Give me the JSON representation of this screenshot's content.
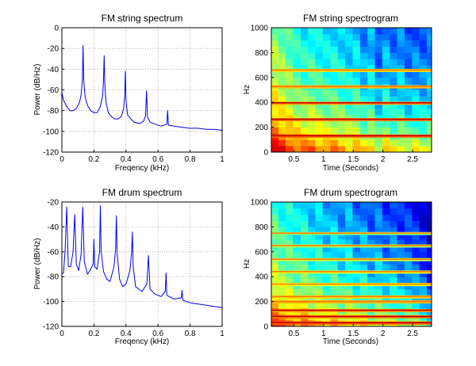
{
  "chart_data": [
    {
      "type": "line",
      "title": "FM string spectrum",
      "xlabel": "Freqency (kHz)",
      "ylabel": "Power (dB/Hz)",
      "xlim": [
        0,
        1
      ],
      "ylim": [
        -120,
        0
      ],
      "x_ticks": [
        "0",
        "0.2",
        "0.4",
        "0.6",
        "0.8",
        "1"
      ],
      "y_ticks": [
        "0",
        "-20",
        "-40",
        "-60",
        "-80",
        "-100",
        "-120"
      ],
      "grid": true,
      "line_color": "#0000ee",
      "peaks": [
        {
          "x": 0.132,
          "y": -17
        },
        {
          "x": 0.264,
          "y": -27
        },
        {
          "x": 0.396,
          "y": -42
        },
        {
          "x": 0.528,
          "y": -61
        },
        {
          "x": 0.66,
          "y": -80
        }
      ],
      "series": [
        {
          "x": [
            0,
            0.01,
            0.03,
            0.05,
            0.07,
            0.09,
            0.11,
            0.12,
            0.128,
            0.132,
            0.136,
            0.145,
            0.16,
            0.18,
            0.2,
            0.22,
            0.24,
            0.255,
            0.26,
            0.264,
            0.268,
            0.275,
            0.29,
            0.31,
            0.33,
            0.35,
            0.37,
            0.385,
            0.392,
            0.396,
            0.4,
            0.41,
            0.43,
            0.45,
            0.47,
            0.49,
            0.51,
            0.522,
            0.528,
            0.534,
            0.55,
            0.58,
            0.62,
            0.655,
            0.66,
            0.665,
            0.7,
            0.75,
            0.8,
            0.85,
            0.9,
            0.95,
            1.0
          ],
          "y": [
            -62,
            -70,
            -76,
            -80,
            -80,
            -78,
            -72,
            -65,
            -50,
            -17,
            -50,
            -67,
            -75,
            -80,
            -82,
            -82,
            -76,
            -65,
            -50,
            -27,
            -55,
            -72,
            -82,
            -86,
            -88,
            -88,
            -86,
            -78,
            -65,
            -42,
            -70,
            -84,
            -88,
            -91,
            -92,
            -92,
            -90,
            -85,
            -61,
            -86,
            -91,
            -93,
            -95,
            -93,
            -80,
            -94,
            -95,
            -96,
            -97,
            -97,
            -98,
            -98,
            -99
          ]
        }
      ]
    },
    {
      "type": "heatmap",
      "title": "FM string spectrogram",
      "xlabel": "Time (Seconds)",
      "ylabel": "Hz",
      "xlim": [
        0.12,
        2.82
      ],
      "ylim": [
        0,
        1000
      ],
      "x_ticks": [
        "0.5",
        "1",
        "1.5",
        "2",
        "2.5"
      ],
      "y_ticks": [
        "0",
        "200",
        "400",
        "600",
        "800",
        "1000"
      ],
      "colormap": "jet",
      "harmonic_lines_hz": [
        132,
        264,
        396,
        528,
        660
      ],
      "columns": [
        {
          "t": 0.18,
          "level": 0.62
        },
        {
          "t": 0.3,
          "level": 0.58
        },
        {
          "t": 0.42,
          "level": 0.55
        },
        {
          "t": 0.55,
          "level": 0.5
        },
        {
          "t": 0.68,
          "level": 0.48
        },
        {
          "t": 0.8,
          "level": 0.5
        },
        {
          "t": 0.92,
          "level": 0.47
        },
        {
          "t": 1.05,
          "level": 0.45
        },
        {
          "t": 1.18,
          "level": 0.46
        },
        {
          "t": 1.3,
          "level": 0.44
        },
        {
          "t": 1.43,
          "level": 0.41
        },
        {
          "t": 1.55,
          "level": 0.43
        },
        {
          "t": 1.68,
          "level": 0.36
        },
        {
          "t": 1.8,
          "level": 0.4
        },
        {
          "t": 1.93,
          "level": 0.3
        },
        {
          "t": 2.05,
          "level": 0.38
        },
        {
          "t": 2.18,
          "level": 0.33
        },
        {
          "t": 2.3,
          "level": 0.36
        },
        {
          "t": 2.43,
          "level": 0.3
        },
        {
          "t": 2.55,
          "level": 0.33
        },
        {
          "t": 2.68,
          "level": 0.31
        },
        {
          "t": 2.8,
          "level": 0.34
        }
      ]
    },
    {
      "type": "line",
      "title": "FM drum spectrum",
      "xlabel": "Freqency (kHz)",
      "ylabel": "Power (dB/Hz)",
      "xlim": [
        0,
        1
      ],
      "ylim": [
        -120,
        -20
      ],
      "x_ticks": [
        "0",
        "0.2",
        "0.4",
        "0.6",
        "0.8",
        "1"
      ],
      "y_ticks": [
        "-20",
        "-40",
        "-60",
        "-80",
        "-100",
        "-120"
      ],
      "grid": true,
      "line_color": "#0000ee",
      "peaks": [
        {
          "x": 0.03,
          "y": -24
        },
        {
          "x": 0.08,
          "y": -30
        },
        {
          "x": 0.13,
          "y": -24
        },
        {
          "x": 0.2,
          "y": -50
        },
        {
          "x": 0.24,
          "y": -23
        },
        {
          "x": 0.34,
          "y": -31
        },
        {
          "x": 0.44,
          "y": -44
        },
        {
          "x": 0.54,
          "y": -63
        },
        {
          "x": 0.65,
          "y": -77
        },
        {
          "x": 0.75,
          "y": -91
        }
      ],
      "series": [
        {
          "x": [
            0,
            0.01,
            0.02,
            0.03,
            0.04,
            0.055,
            0.07,
            0.08,
            0.09,
            0.105,
            0.12,
            0.13,
            0.14,
            0.16,
            0.18,
            0.195,
            0.2,
            0.205,
            0.22,
            0.235,
            0.24,
            0.245,
            0.26,
            0.28,
            0.3,
            0.325,
            0.335,
            0.34,
            0.345,
            0.36,
            0.38,
            0.4,
            0.425,
            0.435,
            0.44,
            0.445,
            0.46,
            0.48,
            0.5,
            0.53,
            0.54,
            0.55,
            0.58,
            0.62,
            0.645,
            0.65,
            0.655,
            0.7,
            0.745,
            0.75,
            0.755,
            0.8,
            0.85,
            0.9,
            0.95,
            1.0
          ],
          "y": [
            -78,
            -77,
            -60,
            -24,
            -72,
            -72,
            -60,
            -30,
            -70,
            -75,
            -62,
            -24,
            -68,
            -78,
            -74,
            -70,
            -50,
            -72,
            -74,
            -60,
            -23,
            -60,
            -76,
            -82,
            -84,
            -72,
            -58,
            -31,
            -62,
            -82,
            -88,
            -86,
            -75,
            -60,
            -44,
            -72,
            -88,
            -90,
            -92,
            -86,
            -63,
            -90,
            -94,
            -96,
            -92,
            -77,
            -95,
            -98,
            -97,
            -91,
            -99,
            -101,
            -102,
            -103,
            -104,
            -105
          ]
        }
      ]
    },
    {
      "type": "heatmap",
      "title": "FM drum spectrogram",
      "xlabel": "Time (Seconds)",
      "ylabel": "Hz",
      "xlim": [
        0.12,
        2.82
      ],
      "ylim": [
        0,
        1000
      ],
      "x_ticks": [
        "0.5",
        "1",
        "1.5",
        "2",
        "2.5"
      ],
      "y_ticks": [
        "0",
        "200",
        "400",
        "600",
        "800",
        "1000"
      ],
      "colormap": "jet",
      "harmonic_lines_hz": [
        30,
        80,
        130,
        200,
        240,
        340,
        440,
        540,
        650,
        750
      ],
      "columns": [
        {
          "t": 0.18,
          "level": 0.55
        },
        {
          "t": 0.3,
          "level": 0.5
        },
        {
          "t": 0.42,
          "level": 0.5
        },
        {
          "t": 0.55,
          "level": 0.45
        },
        {
          "t": 0.68,
          "level": 0.48
        },
        {
          "t": 0.8,
          "level": 0.42
        },
        {
          "t": 0.92,
          "level": 0.44
        },
        {
          "t": 1.05,
          "level": 0.38
        },
        {
          "t": 1.18,
          "level": 0.42
        },
        {
          "t": 1.3,
          "level": 0.36
        },
        {
          "t": 1.43,
          "level": 0.4
        },
        {
          "t": 1.55,
          "level": 0.33
        },
        {
          "t": 1.68,
          "level": 0.36
        },
        {
          "t": 1.8,
          "level": 0.3
        },
        {
          "t": 1.93,
          "level": 0.34
        },
        {
          "t": 2.05,
          "level": 0.28
        },
        {
          "t": 2.18,
          "level": 0.31
        },
        {
          "t": 2.3,
          "level": 0.26
        },
        {
          "t": 2.43,
          "level": 0.27
        },
        {
          "t": 2.55,
          "level": 0.24
        },
        {
          "t": 2.68,
          "level": 0.2
        },
        {
          "t": 2.8,
          "level": 0.12
        }
      ]
    }
  ]
}
